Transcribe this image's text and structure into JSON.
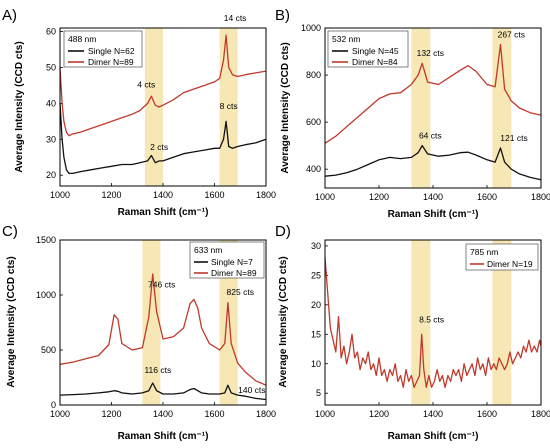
{
  "panels": [
    {
      "letter": "A)",
      "legend_title": "488 nm",
      "colors": [
        "#111111",
        "#c0392b"
      ],
      "chart_data": {
        "type": "line",
        "xlabel": "Raman Shift (cm⁻¹)",
        "ylabel": "Average Intensity (CCD cts)",
        "xlim": [
          1000,
          1800
        ],
        "ylim": [
          17,
          61
        ],
        "xticks": [
          1000,
          1200,
          1400,
          1600,
          1800
        ],
        "yticks": [
          20,
          30,
          40,
          50,
          60
        ],
        "bands": [
          [
            1330,
            1400
          ],
          [
            1620,
            1690
          ]
        ],
        "series": [
          {
            "name": "Single N=62",
            "x": [
              1000,
              1008,
              1015,
              1025,
              1035,
              1050,
              1080,
              1120,
              1160,
              1200,
              1240,
              1280,
              1310,
              1340,
              1355,
              1370,
              1385,
              1400,
              1440,
              1480,
              1520,
              1560,
              1600,
              1620,
              1635,
              1645,
              1655,
              1670,
              1690,
              1720,
              1760,
              1800
            ],
            "y": [
              40,
              30,
              25,
              21.5,
              20.5,
              20.5,
              21,
              21.5,
              22,
              22.5,
              23,
              23,
              23.5,
              24,
              25.5,
              23.5,
              24,
              24,
              25,
              26,
              26.5,
              27,
              27.5,
              27.5,
              30,
              35,
              28,
              27.5,
              28,
              28.5,
              29,
              30
            ]
          },
          {
            "name": "Dimer N=89",
            "x": [
              1000,
              1008,
              1015,
              1025,
              1035,
              1050,
              1080,
              1120,
              1160,
              1200,
              1240,
              1280,
              1310,
              1340,
              1355,
              1370,
              1385,
              1400,
              1440,
              1480,
              1520,
              1560,
              1600,
              1620,
              1635,
              1645,
              1655,
              1670,
              1690,
              1720,
              1760,
              1800
            ],
            "y": [
              50,
              40,
              35,
              32,
              31,
              31.5,
              32,
              33,
              34,
              35,
              36,
              37,
              38,
              40,
              42,
              39.5,
              39,
              39.5,
              41,
              43,
              44,
              45,
              46,
              47,
              52,
              59,
              50,
              48,
              47.5,
              48,
              48.5,
              49
            ]
          }
        ],
        "annotations": [
          {
            "text": "4 cts",
            "x": 1335,
            "y": 44.5
          },
          {
            "text": "14 cts",
            "x": 1680,
            "y": 63
          },
          {
            "text": "2 cts",
            "x": 1385,
            "y": 27
          },
          {
            "text": "8 cts",
            "x": 1655,
            "y": 38.5
          }
        ]
      }
    },
    {
      "letter": "B)",
      "legend_title": "532 nm",
      "colors": [
        "#111111",
        "#c0392b"
      ],
      "chart_data": {
        "type": "line",
        "xlabel": "Raman Shift (cm⁻¹)",
        "ylabel": "Average Intensity (CCD cts)",
        "xlim": [
          1000,
          1800
        ],
        "ylim": [
          320,
          1000
        ],
        "xticks": [
          1000,
          1200,
          1400,
          1600,
          1800
        ],
        "yticks": [
          400,
          600,
          800,
          1000
        ],
        "bands": [
          [
            1320,
            1390
          ],
          [
            1620,
            1690
          ]
        ],
        "series": [
          {
            "name": "Single N=45",
            "x": [
              1000,
              1040,
              1080,
              1120,
              1160,
              1200,
              1240,
              1280,
              1320,
              1345,
              1360,
              1380,
              1420,
              1460,
              1500,
              1530,
              1560,
              1600,
              1630,
              1650,
              1665,
              1690,
              1720,
              1760,
              1800
            ],
            "y": [
              370,
              375,
              385,
              400,
              420,
              440,
              450,
              445,
              450,
              470,
              500,
              465,
              455,
              460,
              470,
              472,
              460,
              440,
              430,
              490,
              430,
              400,
              380,
              365,
              355
            ]
          },
          {
            "name": "Dimer N=84",
            "x": [
              1000,
              1040,
              1080,
              1120,
              1160,
              1200,
              1240,
              1280,
              1320,
              1345,
              1360,
              1380,
              1420,
              1460,
              1500,
              1530,
              1560,
              1600,
              1630,
              1650,
              1665,
              1690,
              1720,
              1760,
              1800
            ],
            "y": [
              510,
              540,
              580,
              620,
              660,
              700,
              720,
              725,
              760,
              800,
              850,
              770,
              760,
              790,
              820,
              840,
              815,
              760,
              750,
              930,
              740,
              690,
              660,
              640,
              630
            ]
          }
        ],
        "annotations": [
          {
            "text": "132 cts",
            "x": 1390,
            "y": 880
          },
          {
            "text": "267 cts",
            "x": 1690,
            "y": 960
          },
          {
            "text": "64 cts",
            "x": 1390,
            "y": 530
          },
          {
            "text": "121 cts",
            "x": 1700,
            "y": 520
          }
        ]
      }
    },
    {
      "letter": "C)",
      "legend_title": "633 nm",
      "colors": [
        "#111111",
        "#c0392b"
      ],
      "chart_data": {
        "type": "line",
        "xlabel": "Raman Shift (cm⁻¹)",
        "ylabel": "Average Intensity (CCD cts)",
        "xlim": [
          1000,
          1800
        ],
        "ylim": [
          0,
          1500
        ],
        "xticks": [
          1000,
          1200,
          1400,
          1600,
          1800
        ],
        "yticks": [
          0,
          500,
          1000,
          1500
        ],
        "bands": [
          [
            1320,
            1390
          ],
          [
            1620,
            1690
          ]
        ],
        "series": [
          {
            "name": "Single N=7",
            "x": [
              1000,
              1050,
              1100,
              1150,
              1190,
              1210,
              1225,
              1240,
              1280,
              1320,
              1345,
              1360,
              1375,
              1400,
              1440,
              1480,
              1505,
              1520,
              1535,
              1550,
              1580,
              1620,
              1640,
              1652,
              1665,
              1690,
              1720,
              1760,
              1800
            ],
            "y": [
              90,
              95,
              100,
              110,
              120,
              130,
              125,
              110,
              100,
              110,
              130,
              200,
              130,
              100,
              100,
              110,
              140,
              150,
              130,
              110,
              100,
              100,
              110,
              180,
              110,
              90,
              80,
              60,
              50
            ]
          },
          {
            "name": "Dimer N=89",
            "x": [
              1000,
              1050,
              1100,
              1150,
              1190,
              1210,
              1225,
              1240,
              1280,
              1320,
              1345,
              1360,
              1375,
              1400,
              1440,
              1480,
              1505,
              1520,
              1535,
              1550,
              1580,
              1620,
              1640,
              1652,
              1665,
              1690,
              1720,
              1760,
              1800
            ],
            "y": [
              370,
              390,
              420,
              450,
              550,
              820,
              780,
              560,
              500,
              520,
              800,
              1190,
              850,
              600,
              620,
              700,
              920,
              960,
              880,
              700,
              560,
              500,
              560,
              930,
              560,
              380,
              300,
              220,
              180
            ]
          }
        ],
        "annotations": [
          {
            "text": "746 cts",
            "x": 1395,
            "y": 1070
          },
          {
            "text": "825 cts",
            "x": 1700,
            "y": 1000
          },
          {
            "text": "116 cts",
            "x": 1380,
            "y": 290
          },
          {
            "text": "140 cts",
            "x": 1745,
            "y": 110
          }
        ]
      }
    },
    {
      "letter": "D)",
      "legend_title": "785 nm",
      "colors": [
        "#c0392b"
      ],
      "chart_data": {
        "type": "line",
        "xlabel": "Raman Shift (cm⁻¹)",
        "ylabel": "Average Intensity (CCD cts)",
        "xlim": [
          1000,
          1800
        ],
        "ylim": [
          3,
          31
        ],
        "xticks": [
          1000,
          1200,
          1400,
          1600,
          1800
        ],
        "yticks": [
          5,
          10,
          15,
          20,
          25,
          30
        ],
        "bands": [
          [
            1320,
            1390
          ],
          [
            1620,
            1690
          ]
        ],
        "series": [
          {
            "name": "Dimer N=19",
            "x": [
              1000,
              1010,
              1020,
              1030,
              1040,
              1050,
              1060,
              1070,
              1080,
              1090,
              1100,
              1110,
              1120,
              1130,
              1140,
              1150,
              1160,
              1170,
              1180,
              1190,
              1200,
              1210,
              1220,
              1230,
              1240,
              1250,
              1260,
              1270,
              1280,
              1290,
              1300,
              1310,
              1320,
              1330,
              1340,
              1350,
              1358,
              1366,
              1375,
              1385,
              1395,
              1405,
              1415,
              1425,
              1435,
              1445,
              1455,
              1465,
              1475,
              1485,
              1495,
              1505,
              1515,
              1525,
              1535,
              1545,
              1555,
              1565,
              1575,
              1585,
              1595,
              1605,
              1615,
              1625,
              1635,
              1645,
              1655,
              1665,
              1675,
              1685,
              1695,
              1705,
              1715,
              1725,
              1735,
              1745,
              1755,
              1765,
              1775,
              1785,
              1795,
              1800
            ],
            "y": [
              28,
              22,
              16,
              14,
              12,
              18,
              11,
              13,
              10,
              12,
              15,
              11,
              12,
              9,
              11,
              10,
              12,
              9,
              10,
              8,
              11,
              8,
              9,
              7,
              9,
              8,
              10,
              7,
              8,
              6,
              9,
              7,
              8,
              6,
              7,
              8,
              15,
              9,
              6,
              8,
              6,
              7,
              9,
              7,
              8,
              6,
              8,
              7,
              9,
              8,
              9,
              7,
              10,
              8,
              9,
              10,
              8,
              11,
              9,
              10,
              8,
              11,
              9,
              10,
              9,
              11,
              10,
              9,
              10,
              12,
              10,
              11,
              12,
              11,
              13,
              12,
              14,
              12,
              13,
              12,
              14,
              13
            ]
          }
        ],
        "annotations": [
          {
            "text": "8.5 cts",
            "x": 1395,
            "y": 17
          }
        ]
      }
    }
  ]
}
